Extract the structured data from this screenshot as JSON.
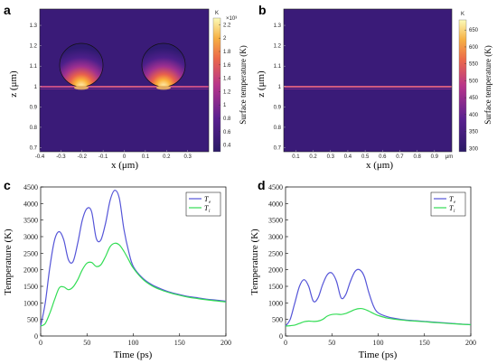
{
  "chart_data": [
    {
      "panel": "a",
      "type": "heatmap",
      "xlabel": "x (μm)",
      "ylabel": "z (μm)",
      "x_ticks": [
        "-0.4",
        "-0.3",
        "-0.2",
        "-0.1",
        "0",
        "0.1",
        "0.2",
        "0.3"
      ],
      "x_tick_values": [
        -0.4,
        -0.3,
        -0.2,
        -0.1,
        0,
        0.1,
        0.2,
        0.3
      ],
      "xlim": [
        -0.4,
        0.4
      ],
      "y_ticks": [
        "0.7",
        "0.8",
        "0.9",
        "1",
        "1.1",
        "1.2",
        "1.3"
      ],
      "y_tick_values": [
        0.7,
        0.8,
        0.9,
        1.0,
        1.1,
        1.2,
        1.3
      ],
      "ylim": [
        0.68,
        1.38
      ],
      "spheres": [
        {
          "x": -0.2,
          "z": 1.12,
          "r": 0.12
        },
        {
          "x": 0.2,
          "z": 1.12,
          "r": 0.12
        }
      ],
      "surface_z": 1.0,
      "colorbar": {
        "label": "Surface temperature (K)",
        "unit": "K",
        "exponent": "×10³",
        "ticks": [
          "0.4",
          "0.6",
          "0.8",
          "1",
          "1.2",
          "1.4",
          "1.6",
          "1.8",
          "2",
          "2.2"
        ],
        "tick_values": [
          0.4,
          0.6,
          0.8,
          1.0,
          1.2,
          1.4,
          1.6,
          1.8,
          2.0,
          2.2
        ],
        "range": [
          0.3,
          2.3
        ]
      }
    },
    {
      "panel": "b",
      "type": "heatmap",
      "xlabel": "x (μm)",
      "ylabel": "z (μm)",
      "x_ticks": [
        "0.1",
        "0.2",
        "0.3",
        "0.4",
        "0.5",
        "0.6",
        "0.7",
        "0.8",
        "0.9"
      ],
      "x_tick_values": [
        0.1,
        0.2,
        0.3,
        0.4,
        0.5,
        0.6,
        0.7,
        0.8,
        0.9
      ],
      "x_unit_tick": "μm",
      "xlim": [
        0.03,
        1.0
      ],
      "y_ticks": [
        "0.7",
        "0.8",
        "0.9",
        "1",
        "1.1",
        "1.2",
        "1.3"
      ],
      "y_tick_values": [
        0.7,
        0.8,
        0.9,
        1.0,
        1.1,
        1.2,
        1.3
      ],
      "ylim": [
        0.68,
        1.38
      ],
      "surface_z": 1.0,
      "colorbar": {
        "label": "Surface temperature (K)",
        "unit": "K",
        "ticks": [
          "300",
          "350",
          "400",
          "450",
          "500",
          "550",
          "600",
          "650"
        ],
        "tick_values": [
          300,
          350,
          400,
          450,
          500,
          550,
          600,
          650
        ],
        "range": [
          290,
          680
        ]
      }
    },
    {
      "panel": "c",
      "type": "line",
      "xlabel": "Time (ps)",
      "ylabel": "Temperature (K)",
      "xlim": [
        0,
        200
      ],
      "ylim": [
        0,
        4500
      ],
      "x_ticks": [
        0,
        50,
        100,
        150,
        200
      ],
      "y_ticks": [
        0,
        500,
        1000,
        1500,
        2000,
        2500,
        3000,
        3500,
        4000,
        4500
      ],
      "legend_position": "top-right",
      "series": [
        {
          "name": "T",
          "sub": "e",
          "color": "#5555d8",
          "x": [
            0,
            5,
            10,
            15,
            20,
            25,
            30,
            35,
            40,
            45,
            50,
            55,
            60,
            65,
            70,
            75,
            80,
            85,
            90,
            95,
            100,
            110,
            120,
            130,
            140,
            150,
            160,
            170,
            180,
            190,
            200
          ],
          "y": [
            300,
            1000,
            2100,
            2900,
            3150,
            2900,
            2300,
            2250,
            2800,
            3500,
            3850,
            3750,
            2950,
            2900,
            3400,
            4100,
            4400,
            4150,
            3200,
            2550,
            2100,
            1750,
            1550,
            1420,
            1320,
            1250,
            1190,
            1150,
            1110,
            1080,
            1050
          ]
        },
        {
          "name": "T",
          "sub": "l",
          "color": "#33dd55",
          "x": [
            0,
            5,
            10,
            15,
            20,
            25,
            30,
            35,
            40,
            45,
            50,
            55,
            60,
            65,
            70,
            75,
            80,
            85,
            90,
            95,
            100,
            110,
            120,
            130,
            140,
            150,
            160,
            170,
            180,
            190,
            200
          ],
          "y": [
            300,
            380,
            700,
            1100,
            1450,
            1480,
            1400,
            1480,
            1700,
            2000,
            2200,
            2220,
            2100,
            2150,
            2400,
            2700,
            2800,
            2750,
            2550,
            2300,
            2050,
            1720,
            1520,
            1390,
            1300,
            1230,
            1170,
            1130,
            1090,
            1060,
            1030
          ]
        }
      ]
    },
    {
      "panel": "d",
      "type": "line",
      "xlabel": "Time (ps)",
      "ylabel": "Temperature (K)",
      "xlim": [
        0,
        200
      ],
      "ylim": [
        0,
        4500
      ],
      "x_ticks": [
        0,
        50,
        100,
        150,
        200
      ],
      "y_ticks": [
        0,
        500,
        1000,
        1500,
        2000,
        2500,
        3000,
        3500,
        4000,
        4500
      ],
      "legend_position": "top-right",
      "series": [
        {
          "name": "T",
          "sub": "e",
          "color": "#5555d8",
          "x": [
            0,
            5,
            10,
            15,
            20,
            25,
            30,
            35,
            40,
            45,
            50,
            55,
            60,
            65,
            70,
            75,
            80,
            85,
            90,
            95,
            100,
            110,
            120,
            130,
            140,
            150,
            160,
            170,
            180,
            190,
            200
          ],
          "y": [
            300,
            500,
            1000,
            1500,
            1700,
            1500,
            1050,
            1150,
            1550,
            1850,
            1900,
            1650,
            1150,
            1250,
            1650,
            1950,
            2000,
            1800,
            1300,
            900,
            700,
            580,
            520,
            480,
            460,
            440,
            420,
            400,
            380,
            360,
            340
          ]
        },
        {
          "name": "T",
          "sub": "l",
          "color": "#33dd55",
          "x": [
            0,
            5,
            10,
            15,
            20,
            25,
            30,
            35,
            40,
            45,
            50,
            55,
            60,
            65,
            70,
            75,
            80,
            85,
            90,
            95,
            100,
            110,
            120,
            130,
            140,
            150,
            160,
            170,
            180,
            190,
            200
          ],
          "y": [
            300,
            310,
            330,
            380,
            430,
            450,
            440,
            450,
            500,
            600,
            650,
            660,
            650,
            680,
            740,
            800,
            830,
            810,
            750,
            680,
            620,
            540,
            500,
            470,
            450,
            430,
            410,
            390,
            370,
            355,
            340
          ]
        }
      ]
    }
  ]
}
